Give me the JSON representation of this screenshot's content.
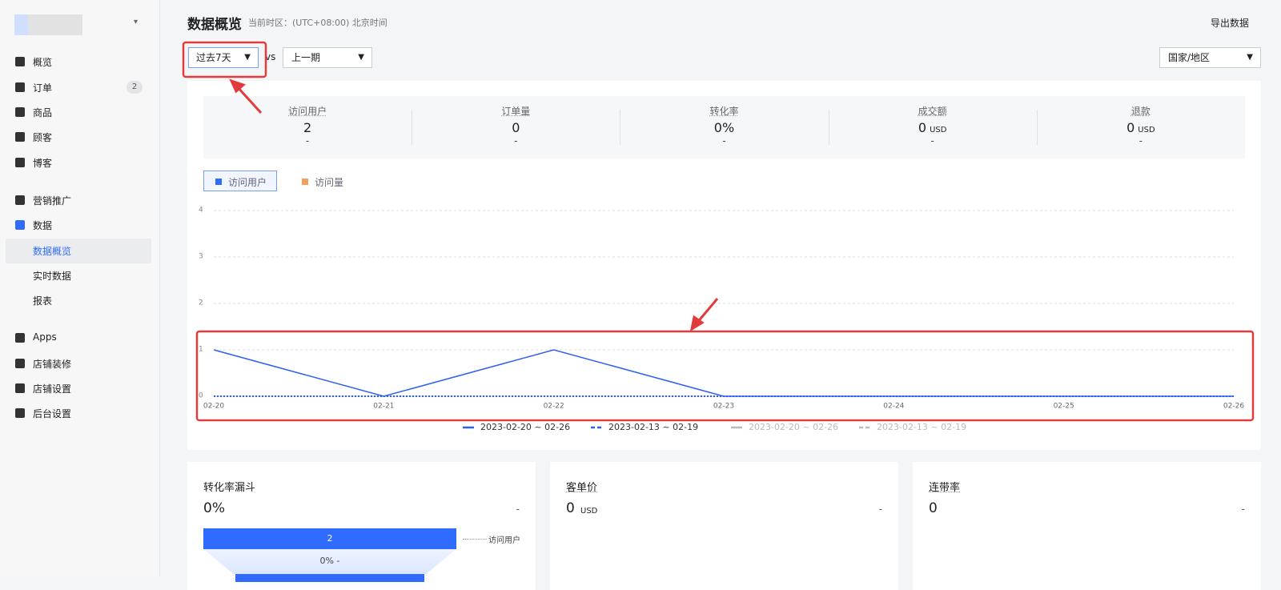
{
  "sidebar": {
    "items": [
      {
        "label": "概览"
      },
      {
        "label": "订单",
        "badge": "2"
      },
      {
        "label": "商品"
      },
      {
        "label": "顾客"
      },
      {
        "label": "博客"
      },
      {
        "label": "营销推广"
      },
      {
        "label": "数据"
      },
      {
        "label": "数据概览",
        "sub": true,
        "active": true
      },
      {
        "label": "实时数据",
        "sub": true
      },
      {
        "label": "报表",
        "sub": true
      },
      {
        "label": "Apps"
      },
      {
        "label": "店铺装修"
      },
      {
        "label": "店铺设置"
      },
      {
        "label": "后台设置"
      }
    ]
  },
  "header": {
    "title": "数据概览",
    "timezone": "当前时区：(UTC+08:00) 北京时间",
    "export": "导出数据"
  },
  "filters": {
    "period": "过去7天",
    "vs": "vs",
    "compare": "上一期",
    "region": "国家/地区"
  },
  "metrics": [
    {
      "name": "访问用户",
      "value": "2",
      "unit": "",
      "change": "-"
    },
    {
      "name": "订单量",
      "value": "0",
      "unit": "",
      "change": "-"
    },
    {
      "name": "转化率",
      "value": "0%",
      "unit": "",
      "change": "-"
    },
    {
      "name": "成交额",
      "value": "0",
      "unit": "USD",
      "change": "-"
    },
    {
      "name": "退款",
      "value": "0",
      "unit": "USD",
      "change": "-"
    }
  ],
  "tabs": [
    {
      "label": "访问用户",
      "color": "#2f6bff",
      "active": true
    },
    {
      "label": "访问量",
      "color": "#f5a05a"
    }
  ],
  "chart_data": {
    "type": "line",
    "categories": [
      "02-20",
      "02-21",
      "02-22",
      "02-23",
      "02-24",
      "02-25",
      "02-26"
    ],
    "series": [
      {
        "name": "2023-02-20 ~ 02-26",
        "color": "#2f5ef2",
        "dash": false,
        "values": [
          1,
          0,
          1,
          0,
          0,
          0,
          0
        ]
      },
      {
        "name": "2023-02-13 ~ 02-19",
        "color": "#2f5ef2",
        "dash": true,
        "values": [
          0,
          0,
          0,
          0,
          0,
          0,
          0
        ]
      }
    ],
    "inactive_legend": [
      {
        "name": "2023-02-20 ~ 02-26",
        "dash": false
      },
      {
        "name": "2023-02-13 ~ 02-19",
        "dash": true
      }
    ],
    "ylim": [
      0,
      4
    ],
    "yticks": [
      0,
      1,
      2,
      3,
      4
    ],
    "grid": true
  },
  "cards": [
    {
      "title": "转化率漏斗",
      "value": "0%",
      "unit": "",
      "change": "-",
      "funnel": {
        "bar": "2",
        "label": "访问用户",
        "rate": "0% -"
      }
    },
    {
      "title": "客单价",
      "value": "0",
      "unit": "USD",
      "change": "-"
    },
    {
      "title": "连带率",
      "value": "0",
      "unit": "",
      "change": "-"
    }
  ]
}
